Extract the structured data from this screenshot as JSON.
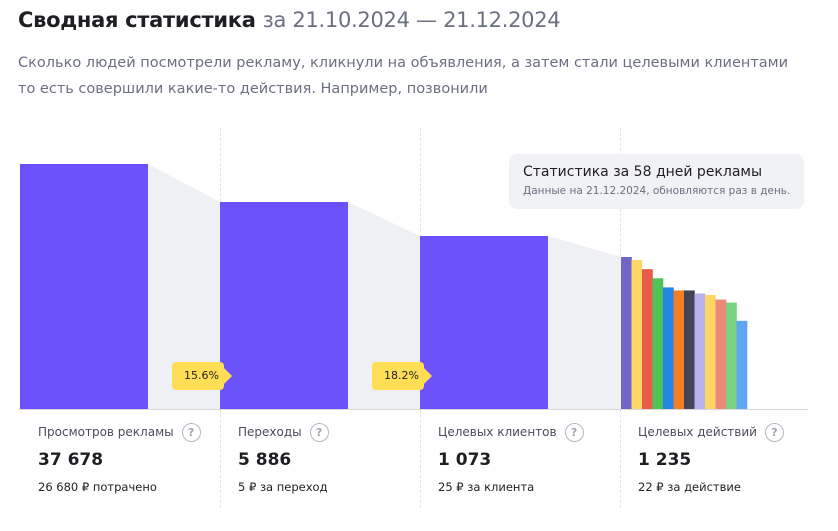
{
  "header": {
    "title": "Сводная статистика",
    "period": "за 21.10.2024 — 21.12.2024",
    "subtitle_line1": "Сколько людей посмотрели рекламу, кликнули на объявления, а затем стали целевыми клиентами",
    "subtitle_line2": "то есть совершили какие-то действия. Например, позвонили"
  },
  "tooltip": {
    "title": "Статистика за 58 дней рекламы",
    "note": "Данные на 21.12.2024, обновляются раз в день."
  },
  "conversion_badges": [
    "15.6%",
    "18.2%"
  ],
  "colors": {
    "funnel_bar": "#6b51fa",
    "funnel_connector": "#eef0f3",
    "badge": "#ffdd55",
    "action_bars": [
      "#6f66c5",
      "#ffd666",
      "#e55c4a",
      "#50c356",
      "#1f86e5",
      "#f27f23",
      "#444457",
      "#b7b1ec",
      "#ffd666",
      "#ec8a77",
      "#79d381",
      "#5fa6f2"
    ]
  },
  "chart_data": {
    "type": "bar",
    "categories": [
      "Просмотров рекламы",
      "Переходы",
      "Целевых клиентов"
    ],
    "values": [
      37678,
      5886,
      1073
    ],
    "action_breakdown_relative": [
      1.0,
      0.98,
      0.92,
      0.86,
      0.8,
      0.78,
      0.78,
      0.76,
      0.75,
      0.72,
      0.7,
      0.58
    ]
  },
  "stats": [
    {
      "label": "Просмотров рекламы",
      "value": "37 678",
      "sub": "26 680 ₽ потрачено"
    },
    {
      "label": "Переходы",
      "value": "5 886",
      "sub": "5 ₽ за переход"
    },
    {
      "label": "Целевых клиентов",
      "value": "1 073",
      "sub": "25 ₽ за клиента"
    },
    {
      "label": "Целевых действий",
      "value": "1 235",
      "sub": "22 ₽ за действие"
    }
  ]
}
